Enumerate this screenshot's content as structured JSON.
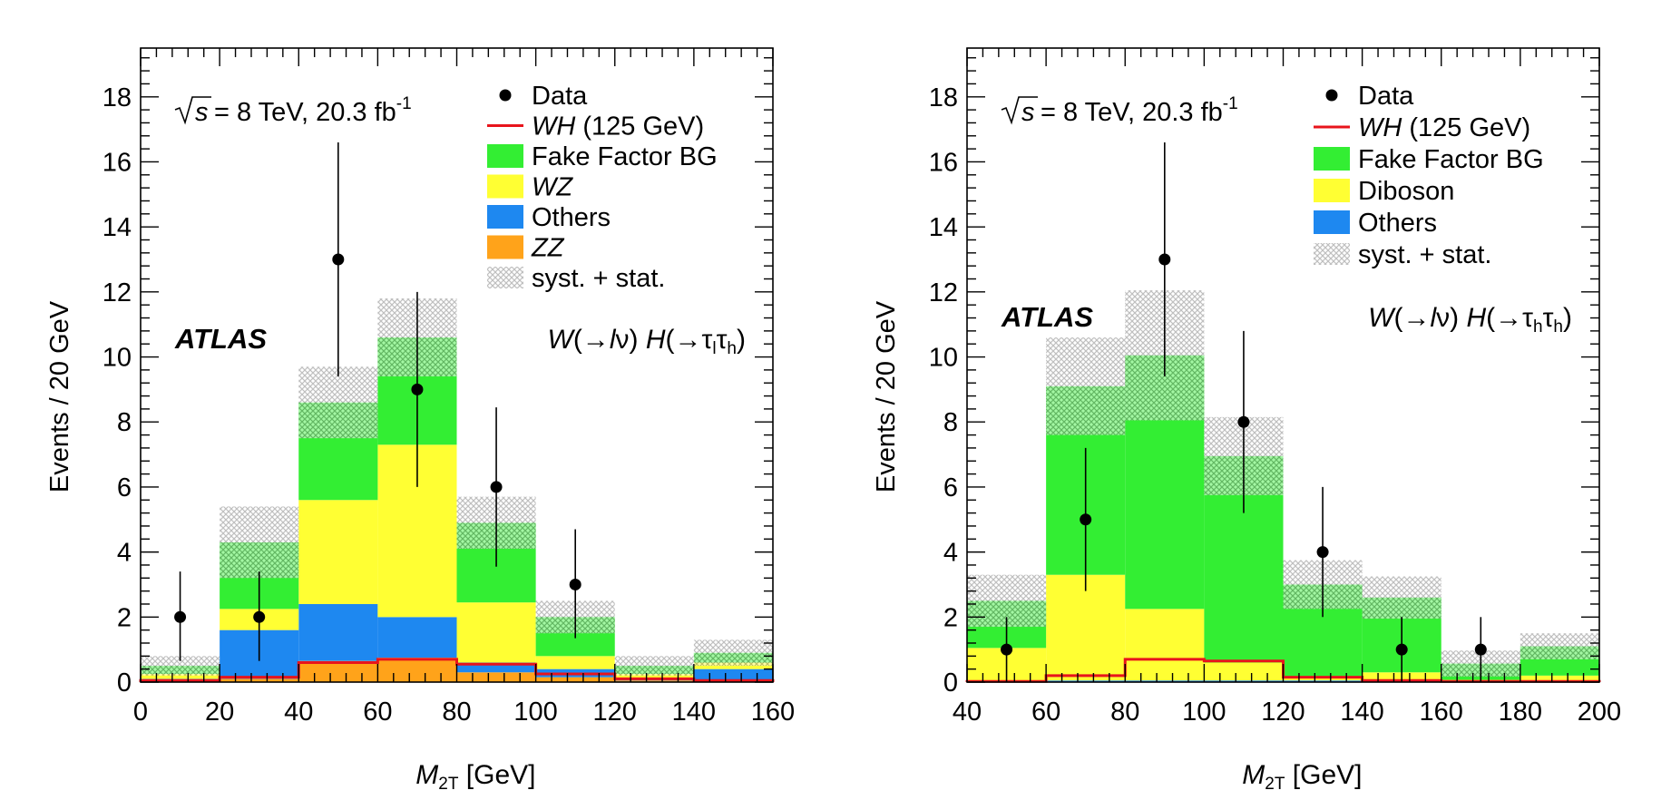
{
  "chart_data": [
    {
      "type": "bar",
      "stacked": true,
      "title": "",
      "xlabel_main": "M",
      "xlabel_sub": "2T",
      "xlabel_unit": "[GeV]",
      "ylabel": "Events / 20 GeV",
      "xlim": [
        0,
        160
      ],
      "ylim": [
        0,
        19.5
      ],
      "xticks": [
        0,
        20,
        40,
        60,
        80,
        100,
        120,
        140,
        160
      ],
      "yticks": [
        0,
        2,
        4,
        6,
        8,
        10,
        12,
        14,
        16,
        18
      ],
      "bin_edges": [
        0,
        20,
        40,
        60,
        80,
        100,
        120,
        140,
        160
      ],
      "energy_text": "= 8 TeV, 20.3 fb",
      "energy_sup": "-1",
      "atlas_label": "ATLAS",
      "channel_text": {
        "pre": "W(→",
        "l1": "l",
        "mid1": "ν) H(→τ",
        "s1": "l",
        "mid2": "τ",
        "s2": "h",
        "post": ")"
      },
      "legend_position": "top-right",
      "legend": [
        {
          "key": "data",
          "label": "Data",
          "italic": false
        },
        {
          "key": "signal",
          "label": "WH",
          "suffix": " (125 GeV)",
          "italic": true
        },
        {
          "key": "fake",
          "label": "Fake Factor BG",
          "italic": false
        },
        {
          "key": "wz",
          "label": "WZ",
          "italic": true
        },
        {
          "key": "others",
          "label": "Others",
          "italic": false
        },
        {
          "key": "zz",
          "label": "ZZ",
          "italic": true
        },
        {
          "key": "unc",
          "label": "syst. + stat.",
          "italic": false
        }
      ],
      "stack": [
        {
          "name": "ZZ",
          "key": "zz",
          "color": "#ffa31a",
          "values": [
            0.05,
            0.1,
            0.65,
            0.75,
            0.3,
            0.15,
            0.05,
            0.05
          ]
        },
        {
          "name": "Others",
          "key": "others",
          "color": "#1e88f0",
          "values": [
            0.05,
            1.5,
            1.75,
            1.25,
            0.3,
            0.25,
            0.05,
            0.35
          ]
        },
        {
          "name": "WZ",
          "key": "wz",
          "color": "#ffff33",
          "values": [
            0.15,
            0.65,
            3.2,
            5.3,
            1.85,
            0.4,
            0.15,
            0.2
          ]
        },
        {
          "name": "Fake Factor BG",
          "key": "fake",
          "color": "#33ee33",
          "values": [
            0.25,
            2.05,
            3.0,
            3.3,
            2.45,
            1.2,
            0.25,
            0.3
          ]
        }
      ],
      "total": [
        0.5,
        4.3,
        8.6,
        10.6,
        4.9,
        2.0,
        0.5,
        0.9
      ],
      "uncertainty": [
        0.3,
        1.1,
        1.1,
        1.2,
        0.8,
        0.5,
        0.3,
        0.4
      ],
      "signal_color": "#e8141c",
      "signal": [
        0.05,
        0.15,
        0.6,
        0.7,
        0.55,
        0.25,
        0.1,
        0.05
      ],
      "data": {
        "x": [
          10,
          30,
          50,
          70,
          90,
          110
        ],
        "y": [
          2,
          2,
          13,
          9,
          6,
          3
        ],
        "err_low": [
          1.35,
          1.35,
          3.6,
          3.0,
          2.45,
          1.65
        ],
        "err_high": [
          1.4,
          1.4,
          3.6,
          3.0,
          2.45,
          1.7
        ]
      }
    },
    {
      "type": "bar",
      "stacked": true,
      "title": "",
      "xlabel_main": "M",
      "xlabel_sub": "2T",
      "xlabel_unit": "[GeV]",
      "ylabel": "Events / 20 GeV",
      "xlim": [
        40,
        200
      ],
      "ylim": [
        0,
        19.5
      ],
      "xticks": [
        40,
        60,
        80,
        100,
        120,
        140,
        160,
        180,
        200
      ],
      "yticks": [
        0,
        2,
        4,
        6,
        8,
        10,
        12,
        14,
        16,
        18
      ],
      "bin_edges": [
        40,
        60,
        80,
        100,
        120,
        140,
        160,
        180,
        200
      ],
      "energy_text": "= 8 TeV, 20.3 fb",
      "energy_sup": "-1",
      "atlas_label": "ATLAS",
      "channel_text": {
        "pre": "W(→",
        "l1": "l",
        "mid1": "ν) H(→τ",
        "s1": "h",
        "mid2": "τ",
        "s2": "h",
        "post": ")"
      },
      "legend_position": "top-right",
      "legend": [
        {
          "key": "data",
          "label": "Data",
          "italic": false
        },
        {
          "key": "signal",
          "label": "WH",
          "suffix": " (125 GeV)",
          "italic": true
        },
        {
          "key": "fake",
          "label": "Fake Factor BG",
          "italic": false
        },
        {
          "key": "diboson",
          "label": "Diboson",
          "italic": false
        },
        {
          "key": "others",
          "label": "Others",
          "italic": false
        },
        {
          "key": "unc",
          "label": "syst. + stat.",
          "italic": false
        }
      ],
      "stack": [
        {
          "name": "Others",
          "key": "others",
          "color": "#1e88f0",
          "values": [
            0.05,
            0.05,
            0.05,
            0.05,
            0.05,
            0.05,
            0.02,
            0.05
          ]
        },
        {
          "name": "Diboson",
          "key": "diboson",
          "color": "#ffff33",
          "values": [
            1.0,
            3.25,
            2.2,
            0.55,
            0.1,
            0.25,
            0.05,
            0.15
          ]
        },
        {
          "name": "Fake Factor BG",
          "key": "fake",
          "color": "#33ee33",
          "values": [
            1.45,
            5.8,
            7.8,
            6.35,
            2.85,
            2.3,
            0.5,
            0.9
          ]
        }
      ],
      "total": [
        2.5,
        9.1,
        10.05,
        6.95,
        3.0,
        2.6,
        0.57,
        1.1
      ],
      "uncertainty": [
        0.8,
        1.5,
        2.0,
        1.2,
        0.75,
        0.65,
        0.4,
        0.4
      ],
      "signal_color": "#e8141c",
      "signal": [
        0.02,
        0.2,
        0.7,
        0.65,
        0.15,
        0.05,
        0.02,
        0.02
      ],
      "data": {
        "x": [
          50,
          70,
          90,
          110,
          130,
          150,
          170
        ],
        "y": [
          1,
          5,
          13,
          8,
          4,
          1,
          1
        ],
        "err_low": [
          1.0,
          2.2,
          3.6,
          2.8,
          2.0,
          1.0,
          1.0
        ],
        "err_high": [
          1.0,
          2.2,
          3.6,
          2.8,
          2.0,
          1.0,
          1.0
        ]
      }
    }
  ]
}
